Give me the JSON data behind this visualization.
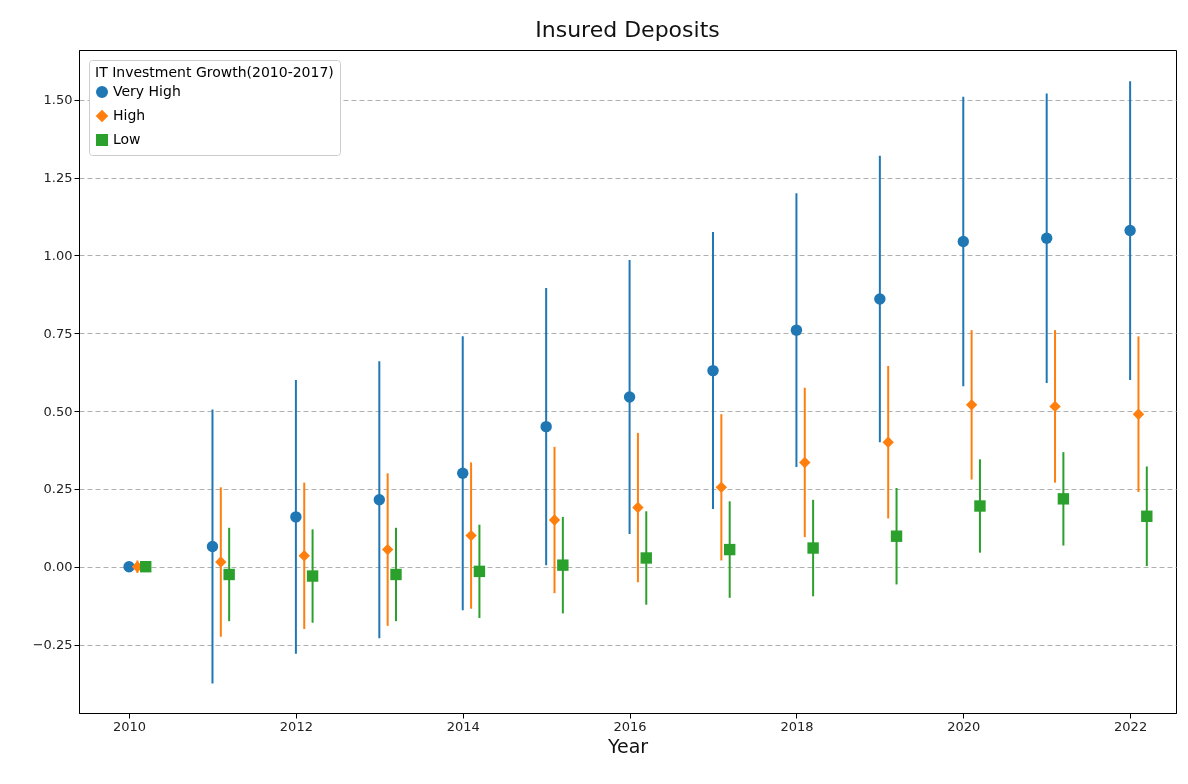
{
  "chart_data": {
    "type": "scatter",
    "title": "Insured Deposits",
    "xlabel": "Year",
    "legend_title": "IT Investment Growth(2010-2017)",
    "legend": "top left",
    "grid": "y",
    "xlim": [
      2009.4,
      2022.55
    ],
    "ylim": [
      -0.47,
      1.66
    ],
    "xticks": [
      2010,
      2012,
      2014,
      2016,
      2018,
      2020,
      2022
    ],
    "yticks": [
      {
        "value": -0.25,
        "label": "−0.25"
      },
      {
        "value": 0,
        "label": "0.00"
      },
      {
        "value": 0.25,
        "label": "0.25"
      },
      {
        "value": 0.5,
        "label": "0.50"
      },
      {
        "value": 0.75,
        "label": "0.75"
      },
      {
        "value": 1,
        "label": "1.00"
      },
      {
        "value": 1.25,
        "label": "1.25"
      },
      {
        "value": 1.5,
        "label": "1.50"
      }
    ],
    "series": [
      {
        "name": "Very High",
        "color": "#1f77b4",
        "marker": "circle",
        "x": [
          2010,
          2011,
          2012,
          2013,
          2014,
          2015,
          2016,
          2017,
          2018,
          2019,
          2020,
          2021,
          2022
        ],
        "values": [
          0,
          0.065,
          0.16,
          0.215,
          0.3,
          0.45,
          0.545,
          0.63,
          0.76,
          0.86,
          1.045,
          1.055,
          1.08
        ],
        "errors": [
          0,
          0.44,
          0.44,
          0.445,
          0.44,
          0.445,
          0.44,
          0.445,
          0.44,
          0.46,
          0.465,
          0.465,
          0.48
        ]
      },
      {
        "name": "High",
        "color": "#ff7f0e",
        "marker": "diamond",
        "x": [
          2010.1,
          2011.1,
          2012.1,
          2013.1,
          2014.1,
          2015.1,
          2016.1,
          2017.1,
          2018.1,
          2019.1,
          2020.1,
          2021.1,
          2022.1
        ],
        "values": [
          0,
          0.015,
          0.035,
          0.055,
          0.1,
          0.15,
          0.19,
          0.255,
          0.335,
          0.4,
          0.52,
          0.515,
          0.49
        ],
        "errors": [
          0.02,
          0.24,
          0.235,
          0.245,
          0.235,
          0.235,
          0.24,
          0.235,
          0.24,
          0.245,
          0.24,
          0.245,
          0.25
        ]
      },
      {
        "name": "Low",
        "color": "#2ca02c",
        "marker": "square",
        "x": [
          2010.2,
          2011.2,
          2012.2,
          2013.2,
          2014.2,
          2015.2,
          2016.2,
          2017.2,
          2018.2,
          2019.2,
          2020.2,
          2021.2,
          2022.2
        ],
        "values": [
          0,
          -0.025,
          -0.03,
          -0.025,
          -0.015,
          0.005,
          0.028,
          0.055,
          0.06,
          0.098,
          0.195,
          0.218,
          0.162
        ],
        "errors": [
          0,
          0.15,
          0.15,
          0.15,
          0.15,
          0.155,
          0.15,
          0.155,
          0.155,
          0.155,
          0.15,
          0.15,
          0.16
        ]
      }
    ]
  }
}
